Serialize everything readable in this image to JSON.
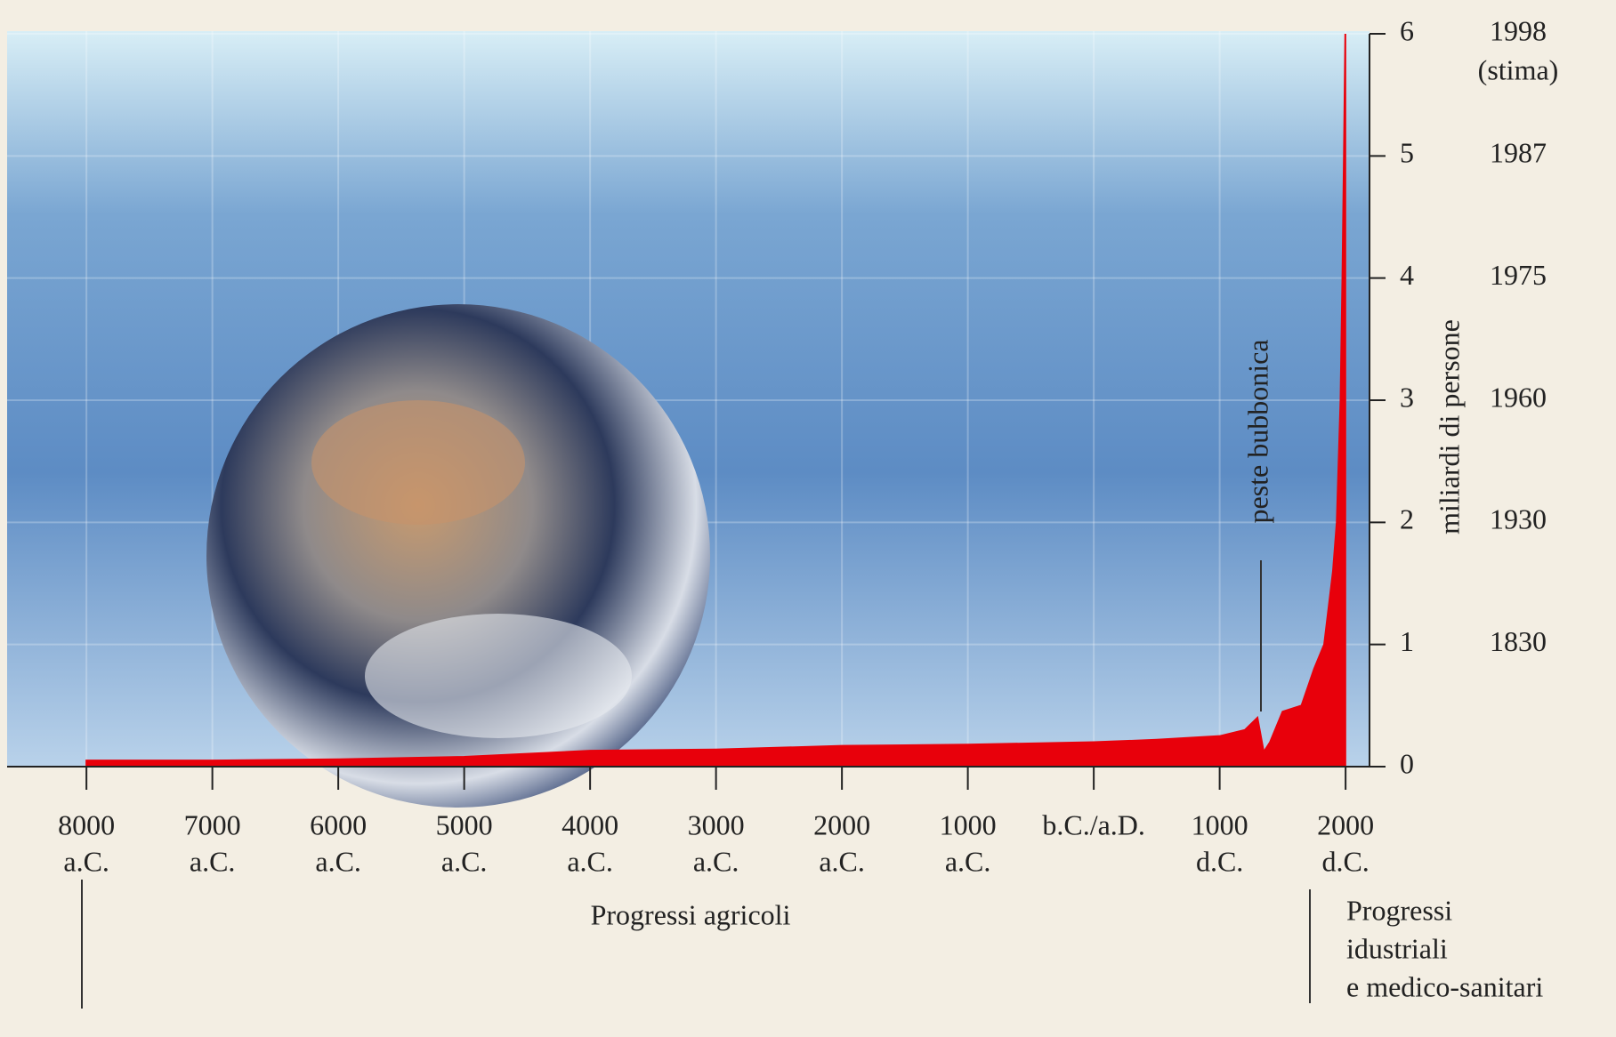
{
  "chart_data": {
    "type": "area",
    "x": [
      -8000,
      -7000,
      -6000,
      -5000,
      -4000,
      -3000,
      -2000,
      -1000,
      0,
      500,
      1000,
      1200,
      1300,
      1350,
      1400,
      1500,
      1650,
      1750,
      1830,
      1900,
      1930,
      1960,
      1975,
      1987,
      1998
    ],
    "series": [
      {
        "color": "#e8000b",
        "values": [
          0.05,
          0.05,
          0.06,
          0.08,
          0.13,
          0.14,
          0.17,
          0.18,
          0.2,
          0.22,
          0.25,
          0.3,
          0.4,
          0.12,
          0.2,
          0.45,
          0.5,
          0.8,
          1,
          1.6,
          2,
          3,
          4,
          5,
          6
        ]
      }
    ],
    "xlim": [
      -8630,
      2190
    ],
    "xticks": [
      {
        "value": -8000,
        "label": [
          "8000",
          "a.C."
        ]
      },
      {
        "value": -7000,
        "label": [
          "7000",
          "a.C."
        ]
      },
      {
        "value": -6000,
        "label": [
          "6000",
          "a.C."
        ]
      },
      {
        "value": -5000,
        "label": [
          "5000",
          "a.C."
        ]
      },
      {
        "value": -4000,
        "label": [
          "4000",
          "a.C."
        ]
      },
      {
        "value": -3000,
        "label": [
          "3000",
          "a.C."
        ]
      },
      {
        "value": -2000,
        "label": [
          "2000",
          "a.C."
        ]
      },
      {
        "value": -1000,
        "label": [
          "1000",
          "a.C."
        ]
      },
      {
        "value": 0,
        "label": [
          "b.C./a.D."
        ]
      },
      {
        "value": 1000,
        "label": [
          "1000",
          "d.C."
        ]
      },
      {
        "value": 2000,
        "label": [
          "2000",
          "d.C."
        ]
      }
    ],
    "ylim": [
      0,
      6
    ],
    "yticks": [
      0,
      1,
      2,
      3,
      4,
      5,
      6
    ],
    "ylabel": "miliardi di persone",
    "tick_years": [
      {
        "value": 1,
        "label": "1830"
      },
      {
        "value": 2,
        "label": "1930"
      },
      {
        "value": 3,
        "label": "1960"
      },
      {
        "value": 4,
        "label": "1975"
      },
      {
        "value": 5,
        "label": "1987"
      },
      {
        "value": 6,
        "label": "1998"
      }
    ],
    "estimate_note": "(stima)",
    "annotations": {
      "plague": "peste bubbonica",
      "agricultural": "Progressi agricoli",
      "industrial": [
        "Progressi",
        "idustriali",
        "e medico-sanitari"
      ]
    },
    "grid": true
  }
}
